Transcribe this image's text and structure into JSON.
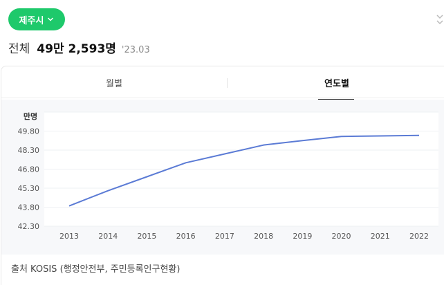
{
  "header": {
    "region_label": "제주시",
    "total_label": "전체",
    "total_value": "49만 2,593명",
    "total_date": "'23.03"
  },
  "tabs": [
    {
      "label": "월별",
      "active": false
    },
    {
      "label": "연도별",
      "active": true
    }
  ],
  "chart_data": {
    "type": "line",
    "ylabel": "만명",
    "x": [
      "2013",
      "2014",
      "2015",
      "2016",
      "2017",
      "2018",
      "2019",
      "2020",
      "2021",
      "2022"
    ],
    "yticks": [
      "42.30",
      "43.80",
      "45.30",
      "46.80",
      "48.30",
      "49.80"
    ],
    "ylim": [
      42.3,
      51.3
    ],
    "series": [
      {
        "values": [
          43.9,
          45.1,
          46.2,
          47.3,
          48.0,
          48.7,
          49.05,
          49.38,
          49.42,
          49.46
        ]
      }
    ],
    "line_color": "#5b7bd5",
    "grid": true
  },
  "footer": {
    "source": "출처 KOSIS (행정안전부, 주민등록인구현황)"
  },
  "colors": {
    "accent": "#1ec96b"
  }
}
